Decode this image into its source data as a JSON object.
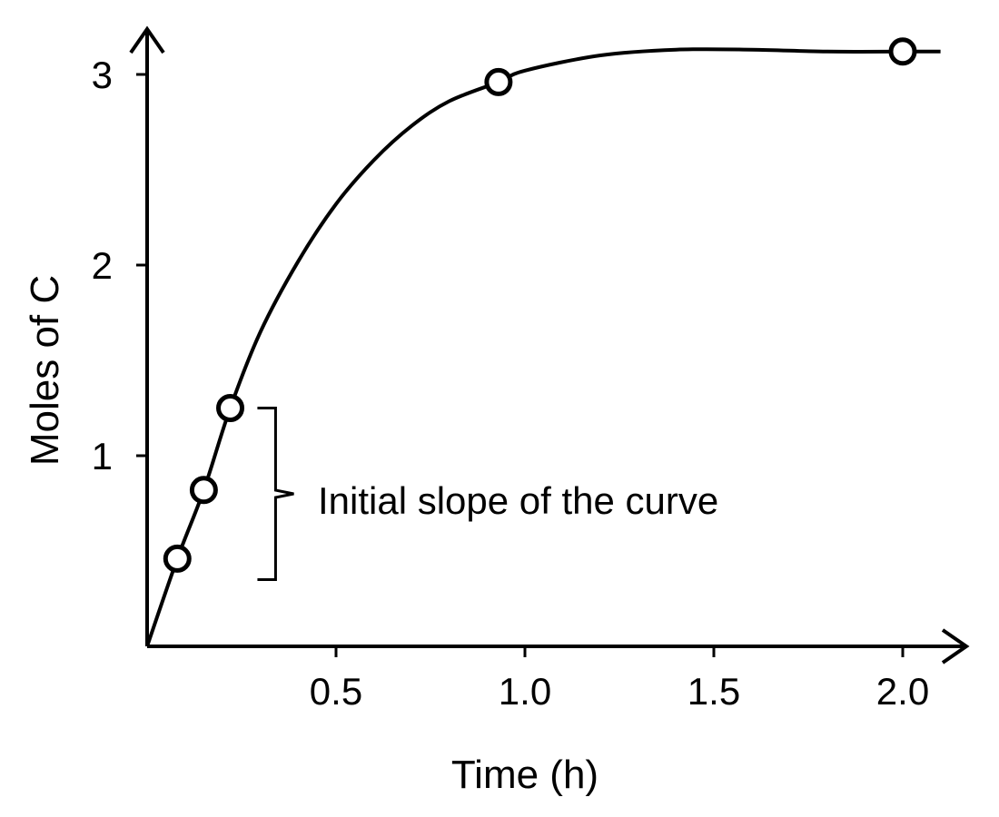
{
  "chart_data": {
    "type": "scatter",
    "xlabel": "Time (h)",
    "ylabel": "Moles of C",
    "xlim": [
      0,
      2.2
    ],
    "ylim": [
      0,
      3.2
    ],
    "x_ticks": [
      0.5,
      1.0,
      1.5,
      2.0
    ],
    "x_tick_labels": [
      "0.5",
      "1.0",
      "1.5",
      "2.0"
    ],
    "y_ticks": [
      1,
      2,
      3
    ],
    "y_tick_labels": [
      "1",
      "2",
      "3"
    ],
    "grid": false,
    "legend": "none",
    "series": [
      {
        "x": [
          0.08,
          0.15,
          0.22,
          0.93,
          2.0
        ],
        "y": [
          0.46,
          0.82,
          1.25,
          2.96,
          3.12
        ]
      }
    ],
    "fitted_curve": {
      "x": [
        0,
        0.08,
        0.15,
        0.22,
        0.3,
        0.4,
        0.5,
        0.6,
        0.7,
        0.8,
        0.93,
        1.0,
        1.2,
        1.4,
        1.6,
        1.8,
        2.0,
        2.1
      ],
      "y": [
        0,
        0.46,
        0.82,
        1.25,
        1.65,
        2.02,
        2.32,
        2.55,
        2.73,
        2.86,
        2.96,
        3.02,
        3.1,
        3.13,
        3.13,
        3.12,
        3.12,
        3.12
      ]
    },
    "annotations": [
      {
        "text": "Initial slope of the curve",
        "x_range": [
          0.3,
          0.34
        ],
        "y_range": [
          0.35,
          1.25
        ]
      }
    ]
  }
}
